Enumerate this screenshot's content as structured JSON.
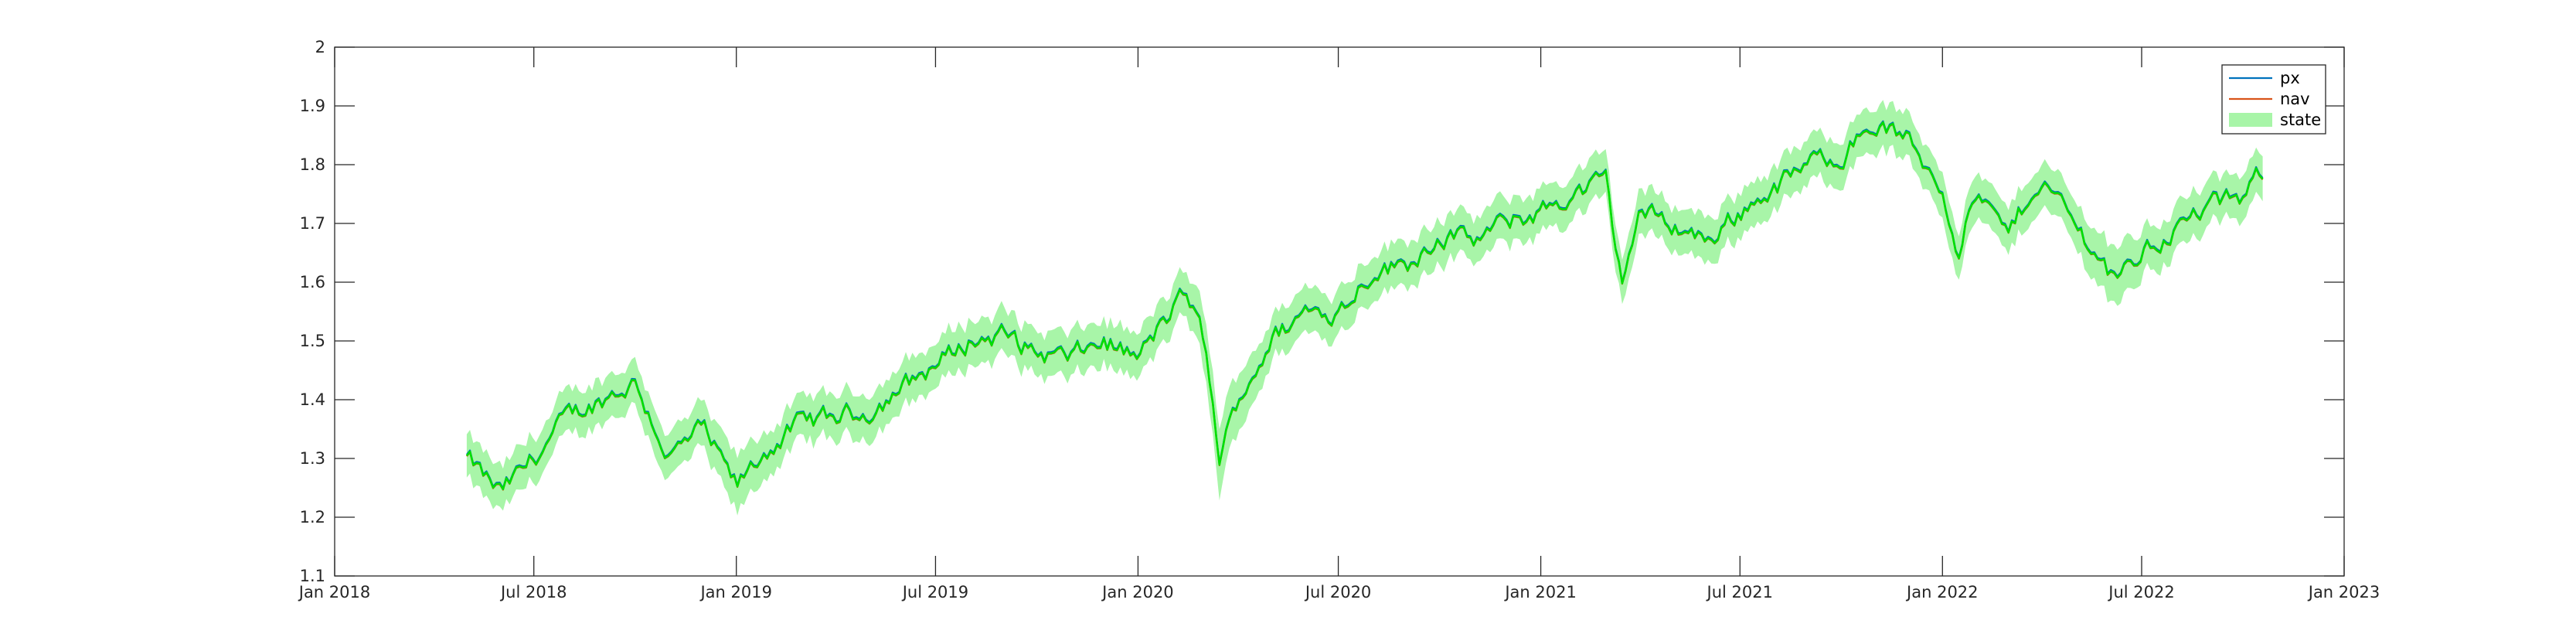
{
  "chart_data": {
    "type": "line",
    "title": "",
    "xlabel": "",
    "ylabel": "",
    "x_range": [
      "2018-01-01",
      "2023-01-01"
    ],
    "xlim": [
      "2018-01-01",
      "2023-01-01"
    ],
    "ylim": [
      1.1,
      2.0
    ],
    "x_ticks": [
      "2018-01-01",
      "2018-07-01",
      "2019-01-01",
      "2019-07-01",
      "2020-01-01",
      "2020-07-01",
      "2021-01-01",
      "2021-07-01",
      "2022-01-01",
      "2022-07-01",
      "2023-01-01"
    ],
    "x_tick_labels": [
      "Jan 2018",
      "Jul 2018",
      "Jan 2019",
      "Jul 2019",
      "Jan 2020",
      "Jul 2020",
      "Jan 2021",
      "Jul 2021",
      "Jan 2022",
      "Jul 2022",
      "Jan 2023"
    ],
    "y_ticks": [
      1.1,
      1.2,
      1.3,
      1.4,
      1.5,
      1.6,
      1.7,
      1.8,
      1.9,
      2.0
    ],
    "y_tick_labels": [
      "1.1",
      "1.2",
      "1.3",
      "1.4",
      "1.5",
      "1.6",
      "1.7",
      "1.8",
      "1.9",
      "2"
    ],
    "grid": false,
    "legend_position": "top-right",
    "series": [
      {
        "name": "px",
        "color": "#0072bd",
        "x": [
          "2018-05-01",
          "2018-05-16",
          "2018-06-01",
          "2018-07-01",
          "2018-08-01",
          "2018-09-01",
          "2018-10-01",
          "2018-11-01",
          "2018-12-01",
          "2019-01-01",
          "2019-02-01",
          "2019-03-01",
          "2019-04-01",
          "2019-05-01",
          "2019-06-01",
          "2019-07-01",
          "2019-08-01",
          "2019-09-01",
          "2019-10-01",
          "2019-11-01",
          "2019-12-01",
          "2020-01-01",
          "2020-02-01",
          "2020-02-15",
          "2020-03-01",
          "2020-03-15",
          "2020-04-01",
          "2020-05-01",
          "2020-06-01",
          "2020-07-01",
          "2020-08-01",
          "2020-09-01",
          "2020-10-01",
          "2020-11-01",
          "2020-12-01",
          "2021-01-01",
          "2021-02-01",
          "2021-03-01",
          "2021-03-15",
          "2021-04-01",
          "2021-05-01",
          "2021-06-01",
          "2021-07-01",
          "2021-08-01",
          "2021-09-01",
          "2021-10-01",
          "2021-11-01",
          "2021-12-01",
          "2022-01-01",
          "2022-01-15",
          "2022-02-01",
          "2022-03-01",
          "2022-04-01",
          "2022-05-01",
          "2022-06-01",
          "2022-06-15",
          "2022-07-01",
          "2022-08-01",
          "2022-09-01",
          "2022-10-01",
          "2022-10-20"
        ],
        "values": [
          1.3,
          1.27,
          1.24,
          1.3,
          1.37,
          1.4,
          1.43,
          1.3,
          1.35,
          1.25,
          1.32,
          1.36,
          1.37,
          1.38,
          1.42,
          1.46,
          1.5,
          1.51,
          1.48,
          1.47,
          1.5,
          1.47,
          1.55,
          1.58,
          1.5,
          1.3,
          1.4,
          1.5,
          1.55,
          1.55,
          1.62,
          1.63,
          1.68,
          1.67,
          1.7,
          1.72,
          1.75,
          1.77,
          1.6,
          1.72,
          1.7,
          1.67,
          1.72,
          1.76,
          1.8,
          1.82,
          1.87,
          1.84,
          1.76,
          1.66,
          1.75,
          1.68,
          1.78,
          1.7,
          1.62,
          1.62,
          1.65,
          1.69,
          1.73,
          1.74,
          1.79
        ]
      },
      {
        "name": "nav",
        "color": "#d95319",
        "x": [
          "2018-05-01",
          "2018-05-16",
          "2018-06-01",
          "2018-07-01",
          "2018-08-01",
          "2018-09-01",
          "2018-10-01",
          "2018-11-01",
          "2018-12-01",
          "2019-01-01",
          "2019-02-01",
          "2019-03-01",
          "2019-04-01",
          "2019-05-01",
          "2019-06-01",
          "2019-07-01",
          "2019-08-01",
          "2019-09-01",
          "2019-10-01",
          "2019-11-01",
          "2019-12-01",
          "2020-01-01",
          "2020-02-01",
          "2020-02-15",
          "2020-03-01",
          "2020-03-15",
          "2020-04-01",
          "2020-05-01",
          "2020-06-01",
          "2020-07-01",
          "2020-08-01",
          "2020-09-01",
          "2020-10-01",
          "2020-11-01",
          "2020-12-01",
          "2021-01-01",
          "2021-02-01",
          "2021-03-01",
          "2021-03-15",
          "2021-04-01",
          "2021-05-01",
          "2021-06-01",
          "2021-07-01",
          "2021-08-01",
          "2021-09-01",
          "2021-10-01",
          "2021-11-01",
          "2021-12-01",
          "2022-01-01",
          "2022-01-15",
          "2022-02-01",
          "2022-03-01",
          "2022-04-01",
          "2022-05-01",
          "2022-06-01",
          "2022-06-15",
          "2022-07-01",
          "2022-08-01",
          "2022-09-01",
          "2022-10-01",
          "2022-10-20"
        ],
        "values": [
          1.3,
          1.27,
          1.24,
          1.3,
          1.37,
          1.4,
          1.43,
          1.3,
          1.35,
          1.25,
          1.32,
          1.36,
          1.37,
          1.38,
          1.42,
          1.46,
          1.5,
          1.51,
          1.48,
          1.47,
          1.5,
          1.47,
          1.55,
          1.58,
          1.5,
          1.3,
          1.4,
          1.5,
          1.55,
          1.55,
          1.62,
          1.63,
          1.68,
          1.67,
          1.7,
          1.72,
          1.75,
          1.77,
          1.6,
          1.72,
          1.7,
          1.67,
          1.72,
          1.76,
          1.8,
          1.82,
          1.87,
          1.84,
          1.76,
          1.66,
          1.75,
          1.68,
          1.78,
          1.7,
          1.62,
          1.62,
          1.65,
          1.69,
          1.73,
          1.74,
          1.79
        ]
      },
      {
        "name": "state",
        "color": "#00e000",
        "band_color": "#a8f5a8",
        "x": [
          "2018-05-01",
          "2018-05-16",
          "2018-06-01",
          "2018-07-01",
          "2018-08-01",
          "2018-09-01",
          "2018-10-01",
          "2018-11-01",
          "2018-12-01",
          "2019-01-01",
          "2019-02-01",
          "2019-03-01",
          "2019-04-01",
          "2019-05-01",
          "2019-06-01",
          "2019-07-01",
          "2019-08-01",
          "2019-09-01",
          "2019-10-01",
          "2019-11-01",
          "2019-12-01",
          "2020-01-01",
          "2020-02-01",
          "2020-02-15",
          "2020-03-01",
          "2020-03-15",
          "2020-04-01",
          "2020-05-01",
          "2020-06-01",
          "2020-07-01",
          "2020-08-01",
          "2020-09-01",
          "2020-10-01",
          "2020-11-01",
          "2020-12-01",
          "2021-01-01",
          "2021-02-01",
          "2021-03-01",
          "2021-03-15",
          "2021-04-01",
          "2021-05-01",
          "2021-06-01",
          "2021-07-01",
          "2021-08-01",
          "2021-09-01",
          "2021-10-01",
          "2021-11-01",
          "2021-12-01",
          "2022-01-01",
          "2022-01-15",
          "2022-02-01",
          "2022-03-01",
          "2022-04-01",
          "2022-05-01",
          "2022-06-01",
          "2022-06-15",
          "2022-07-01",
          "2022-08-01",
          "2022-09-01",
          "2022-10-01",
          "2022-10-20"
        ],
        "values": [
          1.3,
          1.27,
          1.24,
          1.3,
          1.37,
          1.4,
          1.43,
          1.3,
          1.35,
          1.25,
          1.32,
          1.36,
          1.37,
          1.38,
          1.42,
          1.46,
          1.5,
          1.51,
          1.48,
          1.47,
          1.5,
          1.47,
          1.55,
          1.58,
          1.5,
          1.3,
          1.4,
          1.5,
          1.55,
          1.55,
          1.62,
          1.63,
          1.68,
          1.67,
          1.7,
          1.72,
          1.75,
          1.77,
          1.6,
          1.72,
          1.7,
          1.67,
          1.72,
          1.76,
          1.8,
          1.82,
          1.87,
          1.84,
          1.76,
          1.66,
          1.75,
          1.68,
          1.78,
          1.7,
          1.62,
          1.62,
          1.65,
          1.69,
          1.73,
          1.74,
          1.79
        ],
        "lower": [
          1.27,
          1.24,
          1.21,
          1.27,
          1.34,
          1.37,
          1.4,
          1.27,
          1.32,
          1.21,
          1.29,
          1.33,
          1.34,
          1.35,
          1.39,
          1.43,
          1.47,
          1.48,
          1.45,
          1.44,
          1.47,
          1.44,
          1.52,
          1.55,
          1.46,
          1.25,
          1.36,
          1.47,
          1.52,
          1.52,
          1.59,
          1.6,
          1.65,
          1.64,
          1.67,
          1.69,
          1.72,
          1.74,
          1.57,
          1.69,
          1.67,
          1.64,
          1.69,
          1.73,
          1.77,
          1.79,
          1.84,
          1.81,
          1.73,
          1.63,
          1.72,
          1.65,
          1.75,
          1.67,
          1.58,
          1.58,
          1.62,
          1.66,
          1.7,
          1.71,
          1.76
        ],
        "upper": [
          1.33,
          1.3,
          1.27,
          1.33,
          1.4,
          1.43,
          1.46,
          1.33,
          1.38,
          1.29,
          1.35,
          1.39,
          1.4,
          1.41,
          1.45,
          1.49,
          1.53,
          1.54,
          1.51,
          1.5,
          1.53,
          1.5,
          1.58,
          1.61,
          1.54,
          1.35,
          1.44,
          1.53,
          1.58,
          1.58,
          1.65,
          1.66,
          1.71,
          1.7,
          1.73,
          1.75,
          1.78,
          1.8,
          1.63,
          1.75,
          1.73,
          1.7,
          1.75,
          1.79,
          1.83,
          1.85,
          1.9,
          1.87,
          1.79,
          1.69,
          1.78,
          1.71,
          1.81,
          1.73,
          1.66,
          1.66,
          1.68,
          1.72,
          1.76,
          1.77,
          1.82
        ]
      }
    ]
  }
}
